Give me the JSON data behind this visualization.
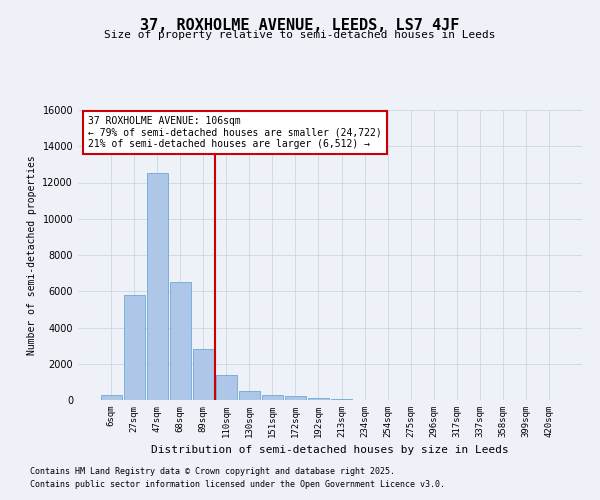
{
  "title": "37, ROXHOLME AVENUE, LEEDS, LS7 4JF",
  "subtitle": "Size of property relative to semi-detached houses in Leeds",
  "xlabel": "Distribution of semi-detached houses by size in Leeds",
  "ylabel": "Number of semi-detached properties",
  "categories": [
    "6sqm",
    "27sqm",
    "47sqm",
    "68sqm",
    "89sqm",
    "110sqm",
    "130sqm",
    "151sqm",
    "172sqm",
    "192sqm",
    "213sqm",
    "234sqm",
    "254sqm",
    "275sqm",
    "296sqm",
    "317sqm",
    "337sqm",
    "358sqm",
    "399sqm",
    "420sqm"
  ],
  "values": [
    300,
    5800,
    12500,
    6500,
    2800,
    1400,
    500,
    300,
    200,
    100,
    30,
    10,
    5,
    2,
    1,
    0,
    0,
    0,
    0,
    0
  ],
  "bar_color": "#aec6e8",
  "bar_edge_color": "#5a9fd4",
  "vline_x_index": 4.5,
  "vline_color": "#cc0000",
  "annotation_text": "37 ROXHOLME AVENUE: 106sqm\n← 79% of semi-detached houses are smaller (24,722)\n21% of semi-detached houses are larger (6,512) →",
  "annotation_box_color": "#cc0000",
  "ylim": [
    0,
    16000
  ],
  "yticks": [
    0,
    2000,
    4000,
    6000,
    8000,
    10000,
    12000,
    14000,
    16000
  ],
  "footer_line1": "Contains HM Land Registry data © Crown copyright and database right 2025.",
  "footer_line2": "Contains public sector information licensed under the Open Government Licence v3.0.",
  "background_color": "#eef2f8",
  "plot_bg_color": "#eef2f8"
}
